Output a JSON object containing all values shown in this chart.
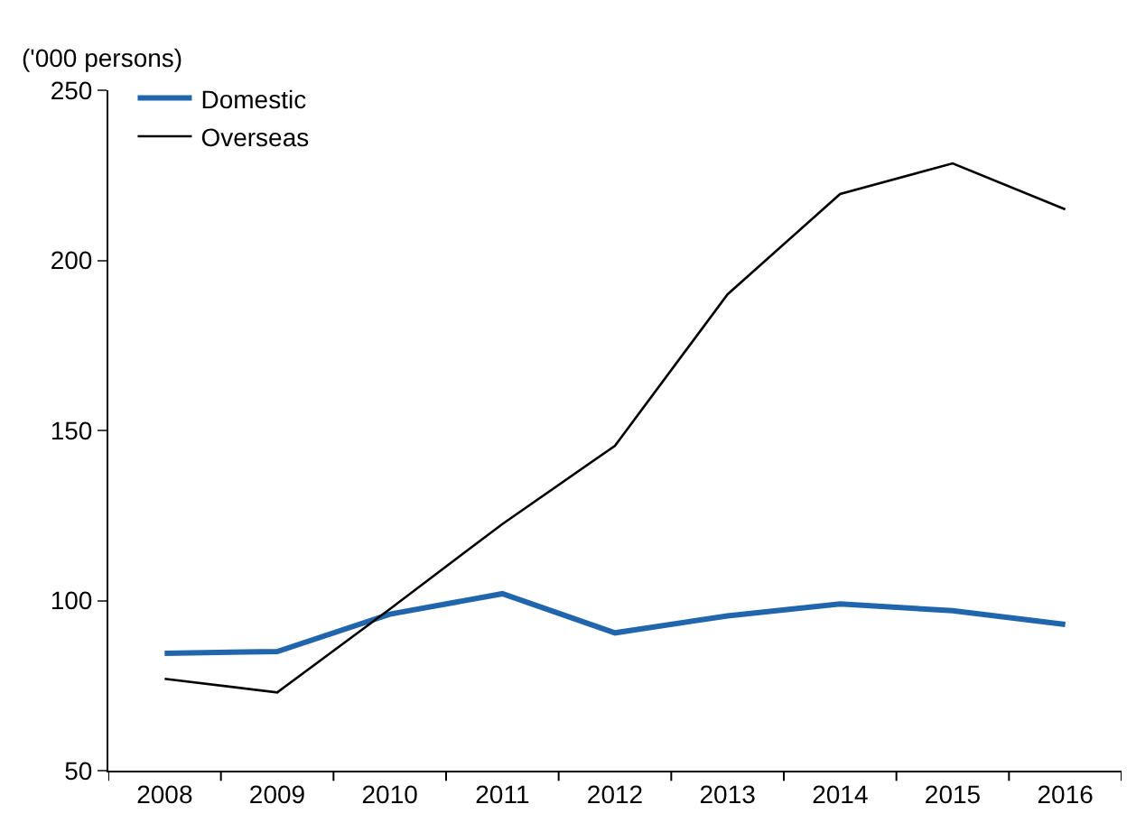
{
  "chart_data": {
    "type": "line",
    "ylabel": "('000 persons)",
    "categories": [
      "2008",
      "2009",
      "2010",
      "2011",
      "2012",
      "2013",
      "2014",
      "2015",
      "2016"
    ],
    "series": [
      {
        "name": "Domestic",
        "color": "#2166ac",
        "values": [
          84.5,
          85,
          96,
          102,
          90.5,
          95.5,
          99,
          97,
          93
        ]
      },
      {
        "name": "Overseas",
        "color": "#000000",
        "values": [
          77,
          73,
          97.5,
          122.5,
          145.5,
          190,
          219.5,
          228.5,
          215
        ]
      }
    ],
    "ylim": [
      50,
      250
    ],
    "yticks": [
      50,
      100,
      150,
      200,
      250
    ],
    "legend": "top left",
    "marker": "none",
    "line_style": "solid"
  }
}
